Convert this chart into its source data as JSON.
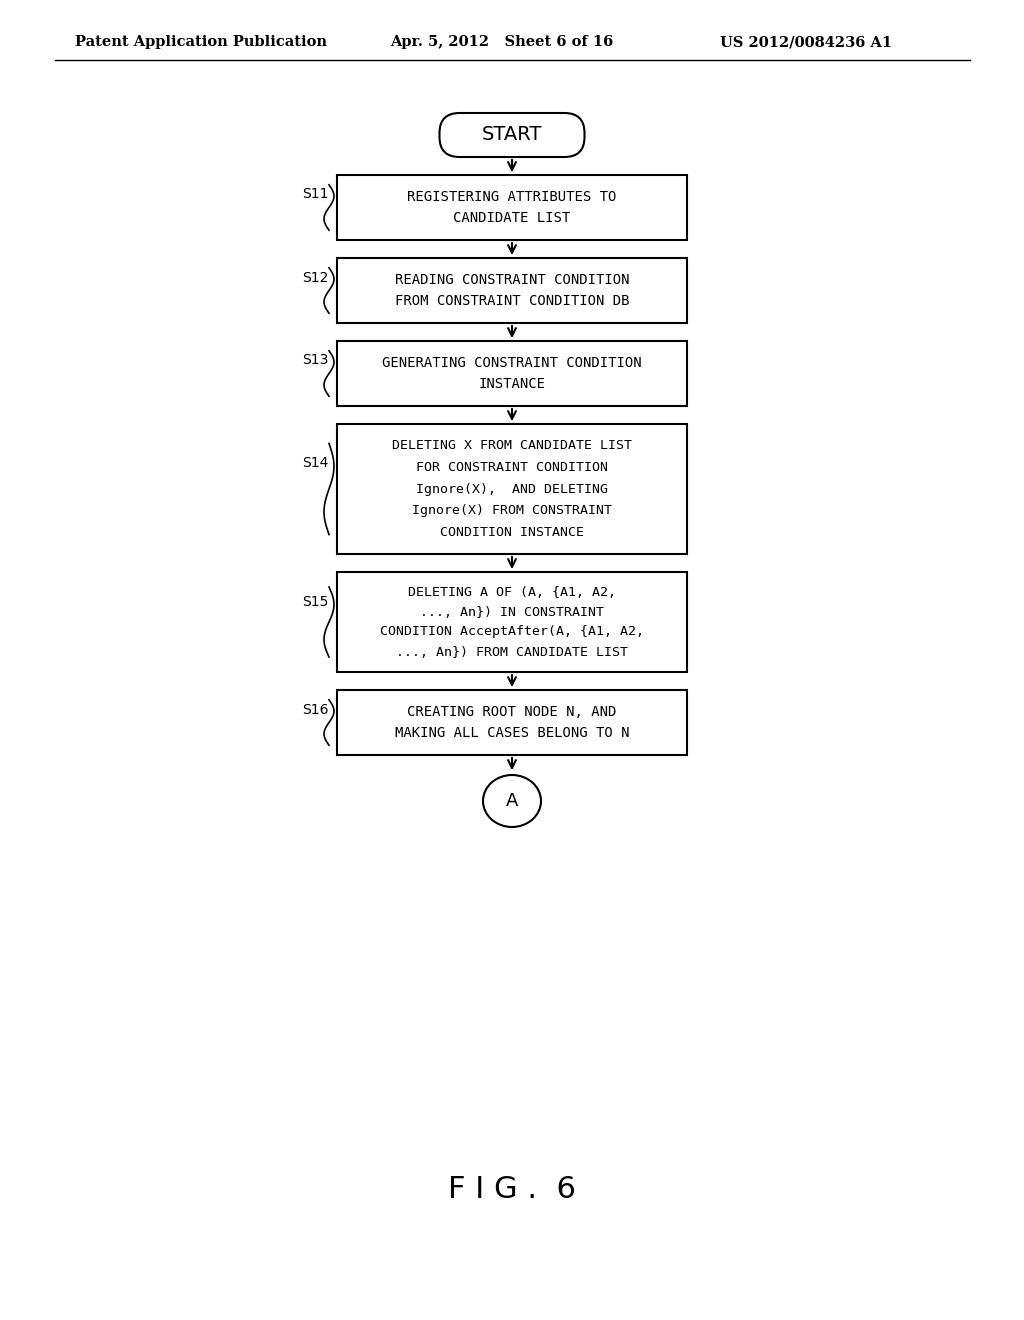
{
  "bg_color": "#ffffff",
  "header_left": "Patent Application Publication",
  "header_center": "Apr. 5, 2012   Sheet 6 of 16",
  "header_right": "US 2012/0084236 A1",
  "figure_label": "F I G .  6",
  "start_label": "START",
  "end_label": "A",
  "steps": [
    {
      "id": "S11",
      "lines": [
        "REGISTERING ATTRIBUTES TO",
        "CANDIDATE LIST"
      ]
    },
    {
      "id": "S12",
      "lines": [
        "READING CONSTRAINT CONDITION",
        "FROM CONSTRAINT CONDITION DB"
      ]
    },
    {
      "id": "S13",
      "lines": [
        "GENERATING CONSTRAINT CONDITION",
        "INSTANCE"
      ]
    },
    {
      "id": "S14",
      "lines": [
        "DELETING X FROM CANDIDATE LIST",
        "FOR CONSTRAINT CONDITION",
        "Ignore(X),  AND DELETING",
        "Ignore(X) FROM CONSTRAINT",
        "CONDITION INSTANCE"
      ]
    },
    {
      "id": "S15",
      "lines": [
        "DELETING A OF (A, {A1, A2,",
        "..., An}) IN CONSTRAINT",
        "CONDITION AcceptAfter(A, {A1, A2,",
        "..., An}) FROM CANDIDATE LIST"
      ]
    },
    {
      "id": "S16",
      "lines": [
        "CREATING ROOT NODE N, AND",
        "MAKING ALL CASES BELONG TO N"
      ]
    }
  ]
}
